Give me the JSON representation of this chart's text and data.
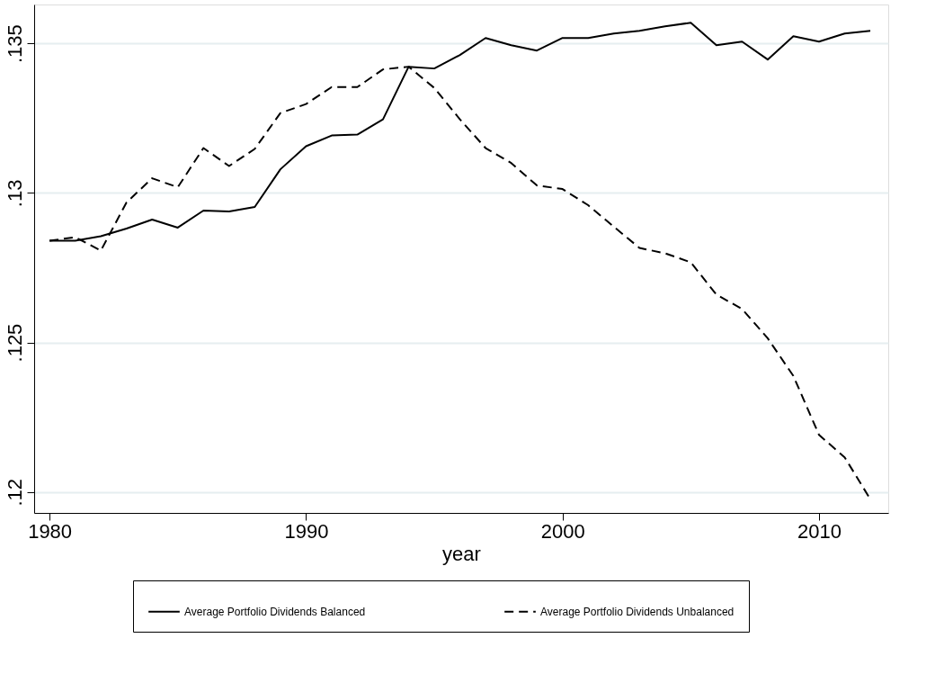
{
  "chart_data": {
    "type": "line",
    "xlabel": "year",
    "x": [
      1980,
      1981,
      1982,
      1983,
      1984,
      1985,
      1986,
      1987,
      1988,
      1989,
      1990,
      1991,
      1992,
      1993,
      1994,
      1995,
      1996,
      1997,
      1998,
      1999,
      2000,
      2001,
      2002,
      2003,
      2004,
      2005,
      2006,
      2007,
      2008,
      2009,
      2010,
      2011,
      2012
    ],
    "series": [
      {
        "name": "Average Portfolio Dividends Balanced",
        "color": "#000000",
        "line_style": "solid",
        "values": [
          0.1284,
          0.1284,
          0.12855,
          0.12881,
          0.12911,
          0.12884,
          0.12941,
          0.12938,
          0.12953,
          0.13079,
          0.13156,
          0.13192,
          0.13195,
          0.13246,
          0.13422,
          0.13416,
          0.13461,
          0.13518,
          0.13494,
          0.13476,
          0.13518,
          0.13518,
          0.13533,
          0.13542,
          0.13557,
          0.13569,
          0.13494,
          0.13506,
          0.13446,
          0.13524,
          0.13506,
          0.13533,
          0.13542
        ]
      },
      {
        "name": "Average Portfolio Dividends Unbalanced",
        "color": "#000000",
        "line_style": "dashed",
        "values": [
          0.1284,
          0.12852,
          0.12807,
          0.12968,
          0.13049,
          0.13019,
          0.1315,
          0.1309,
          0.13147,
          0.13267,
          0.13297,
          0.13354,
          0.13354,
          0.13413,
          0.13422,
          0.13351,
          0.13246,
          0.1315,
          0.131,
          0.13025,
          0.13013,
          0.12959,
          0.12887,
          0.12816,
          0.12798,
          0.12768,
          0.1266,
          0.12612,
          0.12514,
          0.12388,
          0.12191,
          0.12116,
          0.11976
        ]
      }
    ],
    "xlim": [
      1979.4,
      2012.7
    ],
    "xticks": [
      1980,
      1990,
      2000,
      2010
    ],
    "ylim": [
      0.1193,
      0.1363
    ],
    "yticks": [
      {
        "value": 0.12,
        "label": ".12"
      },
      {
        "value": 0.125,
        "label": ".125"
      },
      {
        "value": 0.13,
        "label": ".13"
      },
      {
        "value": 0.135,
        "label": ".135"
      }
    ],
    "grid": "y",
    "legend": "bottom"
  }
}
